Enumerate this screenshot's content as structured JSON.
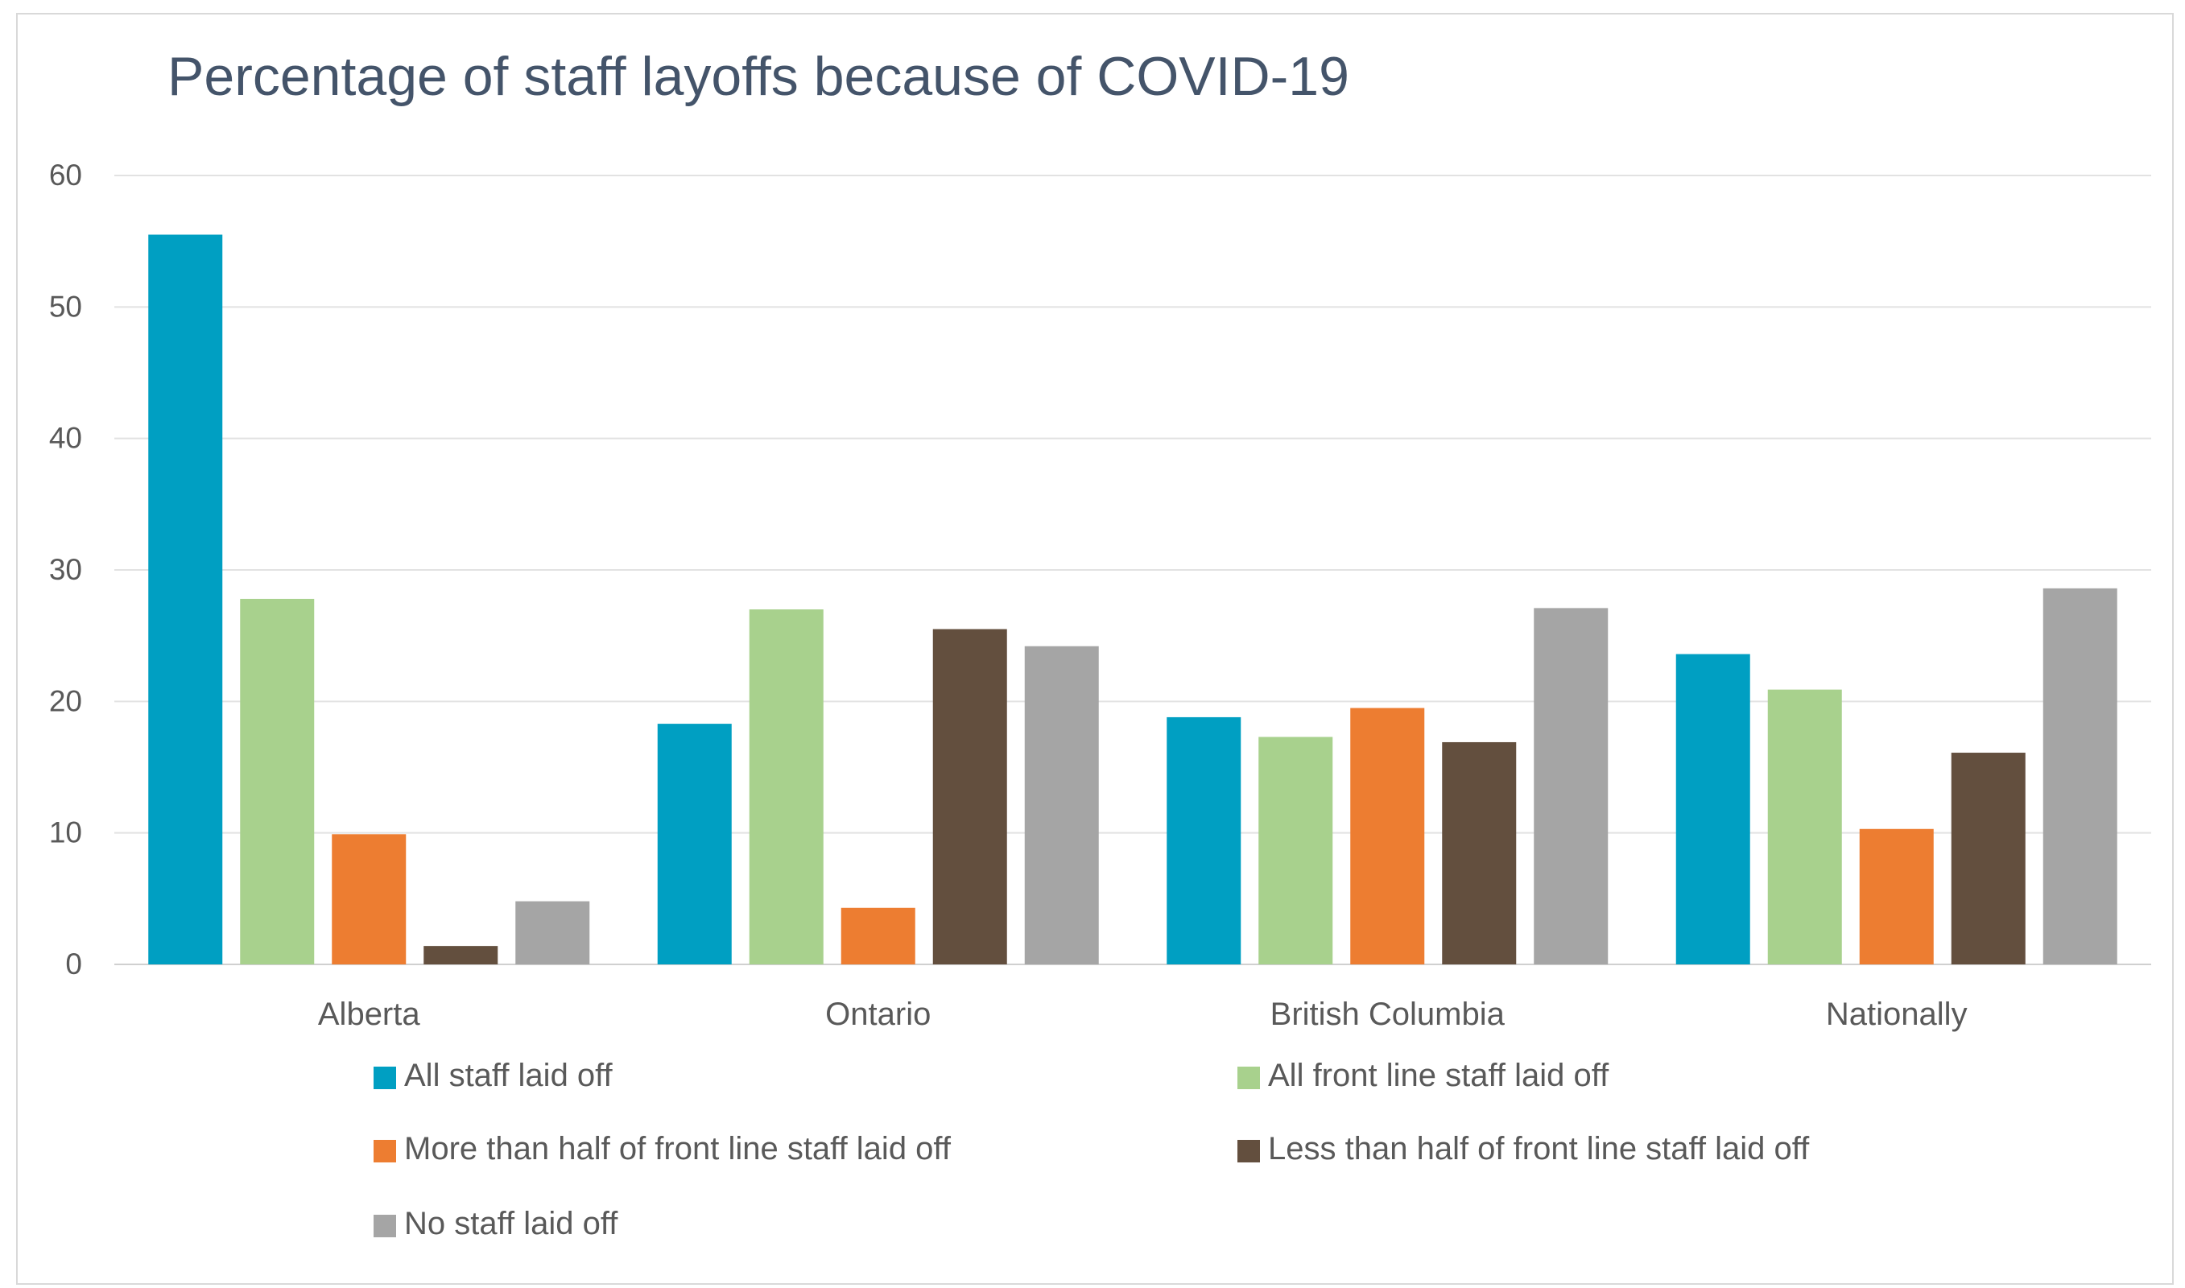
{
  "chart_data": {
    "type": "bar",
    "title": "Percentage of staff layoffs because of COVID-19",
    "xlabel": "",
    "ylabel": "",
    "ylim": [
      0,
      60
    ],
    "yticks": [
      0,
      10,
      20,
      30,
      40,
      50,
      60
    ],
    "ytick_labels": [
      "0",
      "10",
      "20",
      "30",
      "40",
      "50",
      "60"
    ],
    "grid": true,
    "legend_position": "bottom",
    "categories": [
      "Alberta",
      "Ontario",
      "British Columbia",
      "Nationally"
    ],
    "series": [
      {
        "name": "All staff laid off",
        "color": "#009fc2",
        "values": [
          55.5,
          18.3,
          18.8,
          23.6
        ]
      },
      {
        "name": "All front line staff laid off",
        "color": "#a8d18d",
        "values": [
          27.8,
          27.0,
          17.3,
          20.9
        ]
      },
      {
        "name": "More than half of front line staff laid off",
        "color": "#ed7d31",
        "values": [
          9.9,
          4.3,
          19.5,
          10.3
        ]
      },
      {
        "name": "Less than half of front line staff laid off",
        "color": "#634f3e",
        "values": [
          1.4,
          25.5,
          16.9,
          16.1
        ]
      },
      {
        "name": "No staff laid off",
        "color": "#a5a5a5",
        "values": [
          4.8,
          24.2,
          27.1,
          28.6
        ]
      }
    ]
  }
}
